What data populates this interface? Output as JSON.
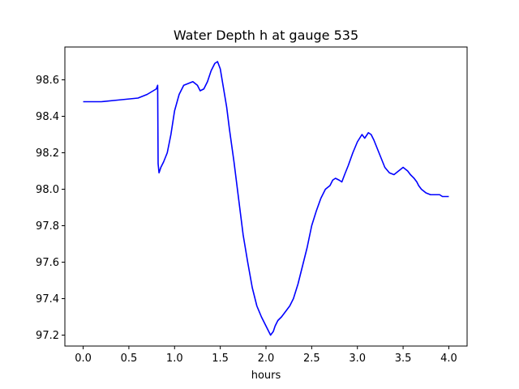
{
  "chart_data": {
    "type": "line",
    "title": "Water Depth h at gauge 535",
    "xlabel": "hours",
    "ylabel": "",
    "xlim": [
      -0.2,
      4.2
    ],
    "ylim": [
      97.14,
      98.78
    ],
    "xticks": [
      0.0,
      0.5,
      1.0,
      1.5,
      2.0,
      2.5,
      3.0,
      3.5,
      4.0
    ],
    "xtick_labels": [
      "0.0",
      "0.5",
      "1.0",
      "1.5",
      "2.0",
      "2.5",
      "3.0",
      "3.5",
      "4.0"
    ],
    "yticks": [
      97.2,
      97.4,
      97.6,
      97.8,
      98.0,
      98.2,
      98.4,
      98.6
    ],
    "ytick_labels": [
      "97.2",
      "97.4",
      "97.6",
      "97.8",
      "98.0",
      "98.2",
      "98.4",
      "98.6"
    ],
    "grid": false,
    "series": [
      {
        "color": "#0000ff",
        "x": [
          0.0,
          0.2,
          0.4,
          0.6,
          0.7,
          0.8,
          0.815,
          0.82,
          0.83,
          0.85,
          0.88,
          0.92,
          0.96,
          1.0,
          1.05,
          1.1,
          1.15,
          1.2,
          1.25,
          1.28,
          1.32,
          1.36,
          1.4,
          1.44,
          1.47,
          1.5,
          1.53,
          1.57,
          1.6,
          1.65,
          1.7,
          1.75,
          1.8,
          1.85,
          1.9,
          1.95,
          2.0,
          2.05,
          2.08,
          2.1,
          2.13,
          2.17,
          2.2,
          2.23,
          2.26,
          2.3,
          2.35,
          2.4,
          2.45,
          2.5,
          2.55,
          2.6,
          2.65,
          2.7,
          2.73,
          2.76,
          2.8,
          2.83,
          2.86,
          2.9,
          2.95,
          3.0,
          3.05,
          3.08,
          3.12,
          3.15,
          3.18,
          3.22,
          3.26,
          3.3,
          3.35,
          3.4,
          3.45,
          3.5,
          3.55,
          3.58,
          3.62,
          3.65,
          3.67,
          3.7,
          3.75,
          3.8,
          3.85,
          3.9,
          3.93,
          3.96,
          4.0
        ],
        "y": [
          98.48,
          98.48,
          98.49,
          98.5,
          98.52,
          98.55,
          98.57,
          98.14,
          98.09,
          98.12,
          98.15,
          98.2,
          98.3,
          98.43,
          98.52,
          98.57,
          98.58,
          98.59,
          98.57,
          98.54,
          98.55,
          98.59,
          98.65,
          98.69,
          98.7,
          98.66,
          98.57,
          98.45,
          98.33,
          98.15,
          97.95,
          97.75,
          97.6,
          97.46,
          97.36,
          97.3,
          97.25,
          97.2,
          97.22,
          97.25,
          97.28,
          97.3,
          97.32,
          97.34,
          97.36,
          97.4,
          97.48,
          97.58,
          97.68,
          97.8,
          97.88,
          97.95,
          98.0,
          98.02,
          98.05,
          98.06,
          98.05,
          98.04,
          98.08,
          98.13,
          98.2,
          98.26,
          98.3,
          98.28,
          98.31,
          98.3,
          98.27,
          98.22,
          98.17,
          98.12,
          98.09,
          98.08,
          98.1,
          98.12,
          98.1,
          98.08,
          98.06,
          98.04,
          98.02,
          98.0,
          97.98,
          97.97,
          97.97,
          97.97,
          97.96,
          97.96,
          97.96
        ]
      }
    ]
  }
}
